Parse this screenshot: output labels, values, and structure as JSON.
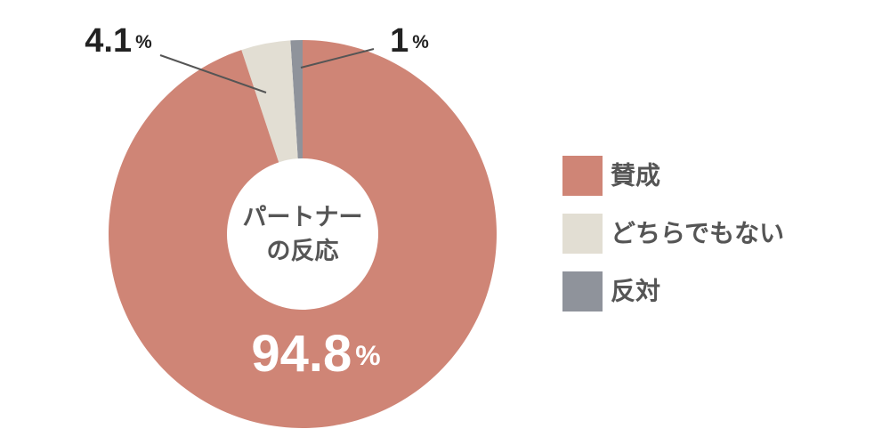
{
  "chart_data": {
    "type": "pie",
    "donut": true,
    "center_text": [
      "パートナー",
      "の反応"
    ],
    "categories": [
      "賛成",
      "どちらでもない",
      "反対"
    ],
    "values": [
      94.8,
      4.1,
      1
    ],
    "value_labels": [
      "94.8%",
      "4.1%",
      "1%"
    ],
    "colors": [
      "#cf8576",
      "#e2ded3",
      "#8f939b"
    ],
    "legend": "right"
  }
}
